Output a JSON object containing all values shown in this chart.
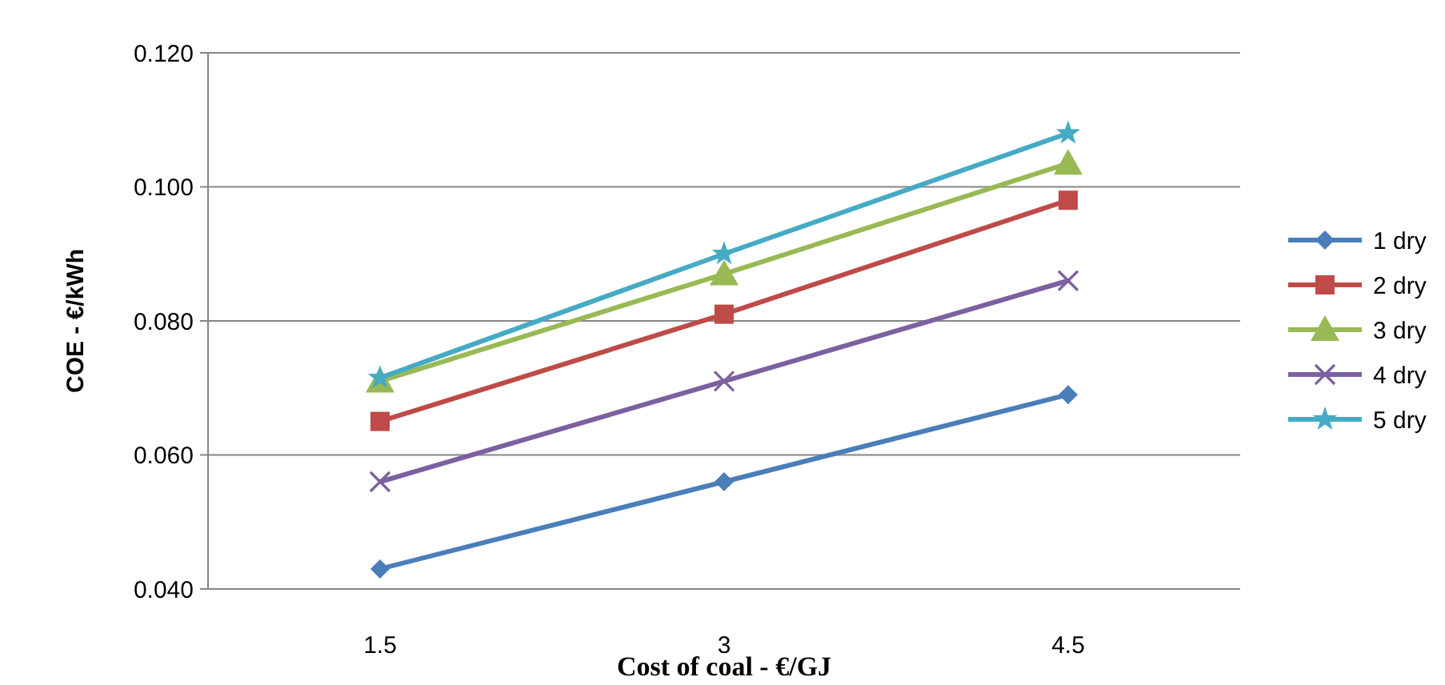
{
  "chart_data": {
    "type": "line",
    "xlabel": "Cost of coal - €/GJ",
    "ylabel": "COE - €/kWh",
    "categories": [
      "1.5",
      "3",
      "4.5"
    ],
    "ylim": [
      0.04,
      0.12
    ],
    "yticks": [
      {
        "value": 0.04,
        "label": "0.040"
      },
      {
        "value": 0.06,
        "label": "0.060"
      },
      {
        "value": 0.08,
        "label": "0.080"
      },
      {
        "value": 0.1,
        "label": "0.100"
      },
      {
        "value": 0.12,
        "label": "0.120"
      }
    ],
    "grid": "y",
    "legend": "right",
    "series": [
      {
        "name": "1 dry",
        "color": "#4a7ebb",
        "marker": "diamond",
        "values": [
          0.043,
          0.056,
          0.069
        ]
      },
      {
        "name": "2 dry",
        "color": "#be4b48",
        "marker": "square",
        "values": [
          0.065,
          0.081,
          0.098
        ]
      },
      {
        "name": "3 dry",
        "color": "#98b954",
        "marker": "triangle",
        "values": [
          0.071,
          0.087,
          0.1035
        ]
      },
      {
        "name": "4 dry",
        "color": "#7d60a0",
        "marker": "cross",
        "values": [
          0.056,
          0.071,
          0.086
        ]
      },
      {
        "name": "5 dry",
        "color": "#46aac5",
        "marker": "star",
        "values": [
          0.0715,
          0.09,
          0.108
        ]
      }
    ]
  }
}
